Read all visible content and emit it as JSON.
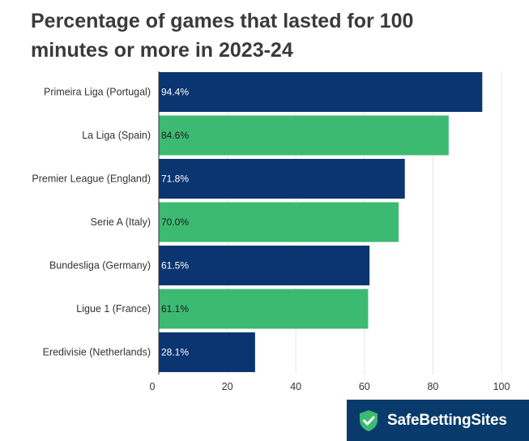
{
  "chart_data": {
    "type": "bar",
    "orientation": "horizontal",
    "title": "Percentage of games that lasted for 100 minutes or more in 2023-24",
    "categories": [
      "Primeira Liga (Portugal)",
      "La Liga (Spain)",
      "Premier League (England)",
      "Serie A (Italy)",
      "Bundesliga (Germany)",
      "Ligue 1 (France)",
      "Eredivisie (Netherlands)"
    ],
    "values": [
      94.4,
      84.6,
      71.8,
      70.0,
      61.5,
      61.1,
      28.1
    ],
    "data_labels": [
      "94.4%",
      "84.6%",
      "71.8%",
      "70.0%",
      "61.5%",
      "61.1%",
      "28.1%"
    ],
    "xlim": [
      0,
      100
    ],
    "x_ticks": [
      0,
      20,
      40,
      60,
      80,
      100
    ],
    "grid": true,
    "colors": {
      "odd_bars": "#0a3570",
      "even_bars": "#3dba72",
      "grid": "#e4e4e4",
      "axis": "#333333"
    }
  },
  "brand": {
    "name": "SafeBettingSites",
    "icon": "shield-check-icon",
    "background": "#083a6b",
    "icon_color": "#3dba72"
  }
}
